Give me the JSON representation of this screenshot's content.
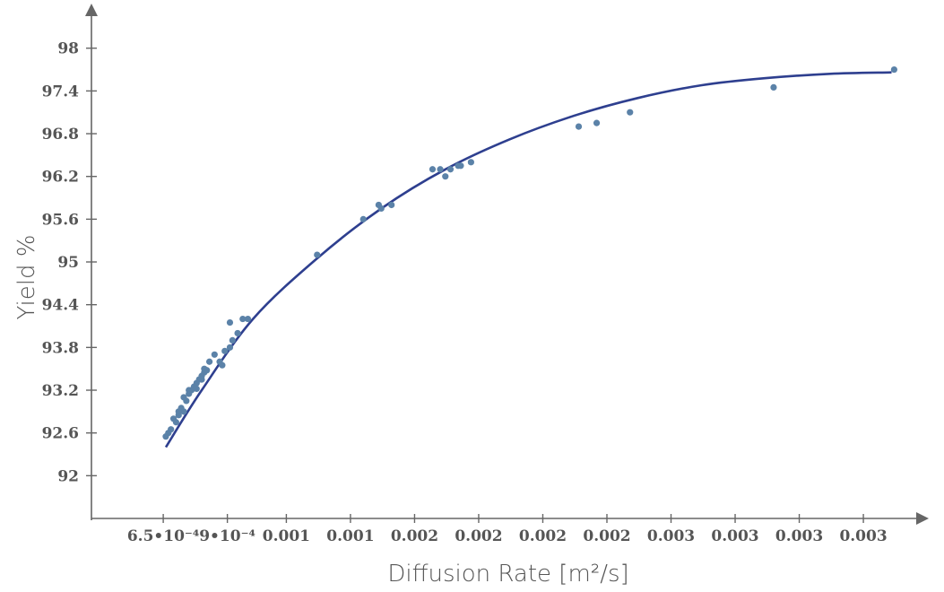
{
  "chart_data": {
    "type": "scatter",
    "xlabel": "Diffusion Rate [m²/s]",
    "ylabel": "Yield %",
    "x_ticks": [
      {
        "value": 0.00065,
        "label": "6.5•10⁻⁴"
      },
      {
        "value": 0.0009,
        "label": "9•10⁻⁴"
      },
      {
        "value": 0.00113,
        "label": "0.001"
      },
      {
        "value": 0.00138,
        "label": "0.001"
      },
      {
        "value": 0.00163,
        "label": "0.002"
      },
      {
        "value": 0.00188,
        "label": "0.002"
      },
      {
        "value": 0.00213,
        "label": "0.002"
      },
      {
        "value": 0.00238,
        "label": "0.002"
      },
      {
        "value": 0.00263,
        "label": "0.003"
      },
      {
        "value": 0.00288,
        "label": "0.003"
      },
      {
        "value": 0.00313,
        "label": "0.003"
      },
      {
        "value": 0.00338,
        "label": "0.003"
      }
    ],
    "y_ticks": [
      92,
      92.6,
      93.2,
      93.8,
      94.4,
      95,
      95.6,
      96.2,
      96.8,
      97.4,
      98
    ],
    "xlim": [
      0.00037,
      0.0036
    ],
    "ylim": [
      91.4,
      98.5
    ],
    "grid": false,
    "colors": {
      "points": "#5b82a8",
      "fit_line": "#2e3f8f",
      "axes": "#666666"
    },
    "series": [
      {
        "kind": "points",
        "x": [
          0.00066,
          0.00067,
          0.00068,
          0.00069,
          0.0007,
          0.00071,
          0.00071,
          0.00072,
          0.00073,
          0.00073,
          0.00074,
          0.00075,
          0.00075,
          0.00076,
          0.00077,
          0.00078,
          0.00078,
          0.00079,
          0.0008,
          0.0008,
          0.00081,
          0.00081,
          0.00082,
          0.00083,
          0.00085,
          0.00087,
          0.00088,
          0.00089,
          0.00091,
          0.00091,
          0.00092,
          0.00094,
          0.00096,
          0.00098,
          0.00125,
          0.00143,
          0.00149,
          0.0015,
          0.00154,
          0.0017,
          0.00173,
          0.00175,
          0.00177,
          0.0018,
          0.00181,
          0.00185,
          0.00227,
          0.00234,
          0.00247,
          0.00303,
          0.0035
        ],
        "y": [
          92.55,
          92.6,
          92.65,
          92.8,
          92.75,
          92.85,
          92.9,
          92.95,
          92.9,
          93.1,
          93.05,
          93.15,
          93.2,
          93.2,
          93.25,
          93.22,
          93.3,
          93.35,
          93.35,
          93.4,
          93.45,
          93.5,
          93.48,
          93.6,
          93.7,
          93.6,
          93.55,
          93.75,
          93.8,
          94.15,
          93.9,
          94.0,
          94.2,
          94.2,
          95.1,
          95.6,
          95.8,
          95.75,
          95.8,
          96.3,
          96.3,
          96.2,
          96.3,
          96.35,
          96.35,
          96.4,
          96.9,
          96.95,
          97.1,
          97.45,
          97.7
        ]
      },
      {
        "kind": "fit_line",
        "x": [
          0.00066,
          0.0008,
          0.001,
          0.00125,
          0.0015,
          0.00175,
          0.002,
          0.00225,
          0.0025,
          0.00275,
          0.003,
          0.00325,
          0.00349
        ],
        "y": [
          92.4,
          93.2,
          94.2,
          95.05,
          95.75,
          96.3,
          96.72,
          97.05,
          97.3,
          97.48,
          97.58,
          97.64,
          97.66
        ]
      }
    ]
  }
}
